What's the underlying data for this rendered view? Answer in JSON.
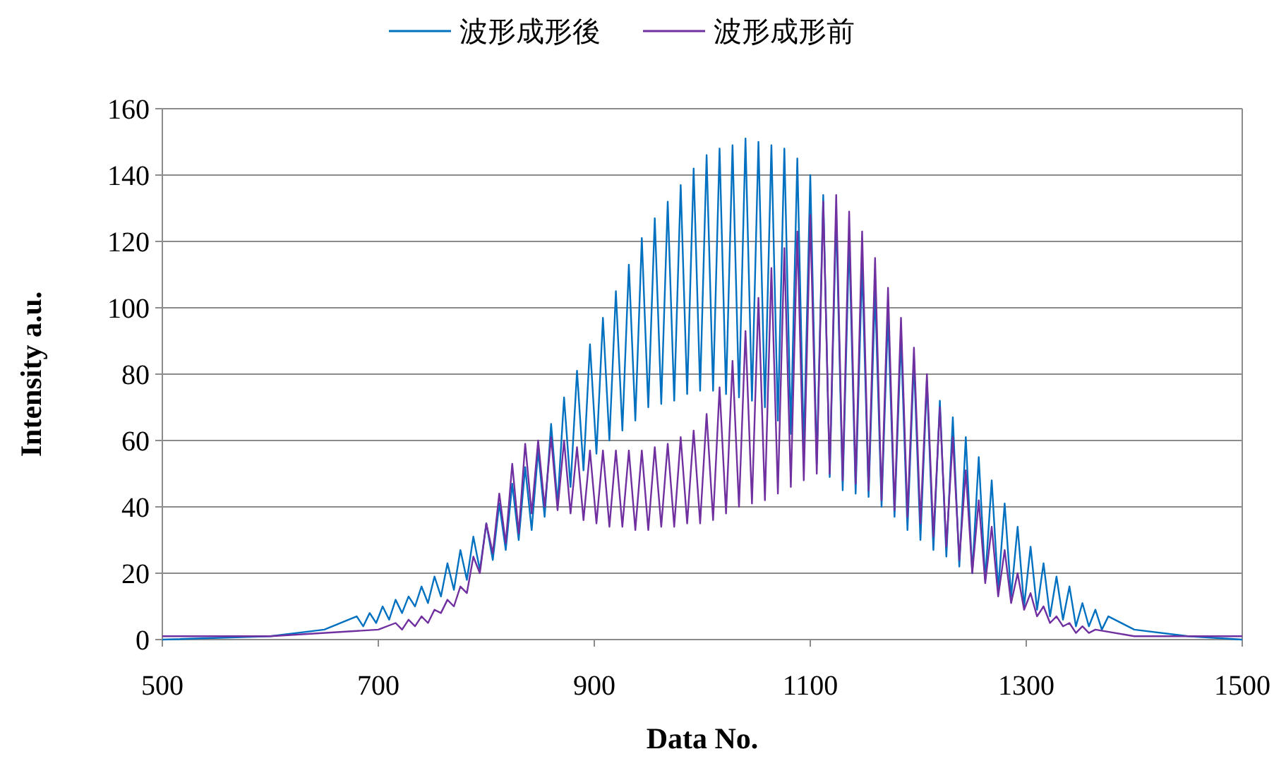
{
  "chart_data": {
    "type": "line",
    "xlabel": "Data No.",
    "ylabel": "Intensity a.u.",
    "xlim": [
      500,
      1500
    ],
    "xticks": [
      500,
      700,
      900,
      1100,
      1300,
      1500
    ],
    "ylim": [
      0,
      160
    ],
    "yticks": [
      0,
      20,
      40,
      60,
      80,
      100,
      120,
      140,
      160
    ],
    "grid": "y",
    "legend": "top",
    "series": [
      {
        "name": "波形成形後",
        "color": "#0070c0",
        "x": [
          500,
          600,
          650,
          680,
          686,
          692,
          698,
          704,
          710,
          716,
          722,
          728,
          734,
          740,
          746,
          752,
          758,
          764,
          770,
          776,
          782,
          788,
          794,
          800,
          806,
          812,
          818,
          824,
          830,
          836,
          842,
          848,
          854,
          860,
          866,
          872,
          878,
          884,
          890,
          896,
          902,
          908,
          914,
          920,
          926,
          932,
          938,
          944,
          950,
          956,
          962,
          968,
          974,
          980,
          986,
          992,
          998,
          1004,
          1010,
          1016,
          1022,
          1028,
          1034,
          1040,
          1046,
          1052,
          1058,
          1064,
          1070,
          1076,
          1082,
          1088,
          1094,
          1100,
          1106,
          1112,
          1118,
          1124,
          1130,
          1136,
          1142,
          1148,
          1154,
          1160,
          1166,
          1172,
          1178,
          1184,
          1190,
          1196,
          1202,
          1208,
          1214,
          1220,
          1226,
          1232,
          1238,
          1244,
          1250,
          1256,
          1262,
          1268,
          1274,
          1280,
          1286,
          1292,
          1298,
          1304,
          1310,
          1316,
          1322,
          1328,
          1334,
          1340,
          1346,
          1352,
          1358,
          1364,
          1370,
          1376,
          1400,
          1450,
          1500
        ],
        "values": [
          0,
          1,
          3,
          7,
          4,
          8,
          5,
          10,
          6,
          12,
          8,
          13,
          10,
          16,
          11,
          19,
          13,
          23,
          15,
          27,
          18,
          31,
          21,
          35,
          24,
          41,
          27,
          47,
          30,
          52,
          33,
          57,
          37,
          65,
          41,
          73,
          46,
          81,
          51,
          89,
          56,
          97,
          60,
          105,
          63,
          113,
          66,
          121,
          70,
          127,
          71,
          132,
          72,
          137,
          74,
          142,
          75,
          146,
          75,
          148,
          74,
          149,
          73,
          151,
          72,
          150,
          70,
          149,
          66,
          148,
          62,
          145,
          57,
          140,
          53,
          134,
          49,
          128,
          45,
          121,
          44,
          113,
          43,
          105,
          40,
          98,
          37,
          91,
          33,
          84,
          30,
          78,
          27,
          72,
          25,
          67,
          22,
          61,
          20,
          55,
          18,
          48,
          15,
          41,
          13,
          34,
          10,
          28,
          9,
          23,
          7,
          19,
          6,
          16,
          4,
          11,
          4,
          9,
          3,
          7,
          3,
          1,
          0
        ]
      },
      {
        "name": "波形成形前",
        "color": "#7030a0",
        "x": [
          500,
          600,
          700,
          716,
          722,
          728,
          734,
          740,
          746,
          752,
          758,
          764,
          770,
          776,
          782,
          788,
          794,
          800,
          806,
          812,
          818,
          824,
          830,
          836,
          842,
          848,
          854,
          860,
          866,
          872,
          878,
          884,
          890,
          896,
          902,
          908,
          914,
          920,
          926,
          932,
          938,
          944,
          950,
          956,
          962,
          968,
          974,
          980,
          986,
          992,
          998,
          1004,
          1010,
          1016,
          1022,
          1028,
          1034,
          1040,
          1046,
          1052,
          1058,
          1064,
          1070,
          1076,
          1082,
          1088,
          1094,
          1100,
          1106,
          1112,
          1118,
          1124,
          1130,
          1136,
          1142,
          1148,
          1154,
          1160,
          1166,
          1172,
          1178,
          1184,
          1190,
          1196,
          1202,
          1208,
          1214,
          1220,
          1226,
          1232,
          1238,
          1244,
          1250,
          1256,
          1262,
          1268,
          1274,
          1280,
          1286,
          1292,
          1298,
          1304,
          1310,
          1316,
          1322,
          1328,
          1334,
          1340,
          1346,
          1352,
          1358,
          1364,
          1400,
          1450,
          1500
        ],
        "values": [
          1,
          1,
          3,
          5,
          3,
          6,
          4,
          7,
          5,
          9,
          8,
          12,
          10,
          16,
          14,
          25,
          20,
          35,
          26,
          44,
          29,
          53,
          32,
          59,
          38,
          60,
          40,
          61,
          39,
          60,
          38,
          58,
          36,
          57,
          35,
          57,
          34,
          57,
          34,
          57,
          33,
          57,
          33,
          58,
          34,
          59,
          34,
          61,
          35,
          63,
          35,
          68,
          36,
          76,
          38,
          84,
          40,
          93,
          41,
          103,
          42,
          112,
          44,
          118,
          46,
          123,
          48,
          128,
          50,
          132,
          50,
          134,
          48,
          129,
          47,
          123,
          45,
          115,
          42,
          106,
          39,
          97,
          37,
          88,
          35,
          80,
          31,
          70,
          28,
          61,
          24,
          51,
          20,
          42,
          17,
          34,
          13,
          27,
          11,
          20,
          9,
          14,
          7,
          10,
          5,
          7,
          4,
          5,
          2,
          4,
          2,
          3,
          1,
          1,
          1
        ]
      }
    ]
  }
}
